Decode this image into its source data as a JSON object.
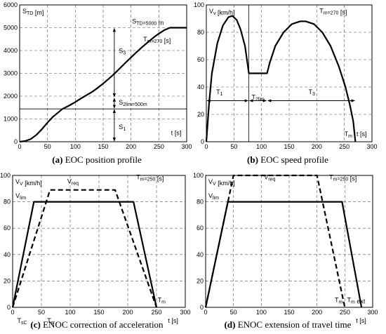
{
  "chart_data": [
    {
      "type": "line",
      "caption_prefix": "(a)",
      "caption_text": "EOC position profile",
      "ylabel": "S_TD [m]",
      "xlabel": "t [s]",
      "xlim": [
        0,
        300
      ],
      "ylim": [
        0,
        6000
      ],
      "xticks": [
        0,
        50,
        100,
        150,
        200,
        250,
        300
      ],
      "yticks": [
        0,
        1000,
        2000,
        3000,
        4000,
        5000,
        6000
      ],
      "grid": true,
      "series": [
        {
          "style": "solid",
          "x": [
            0,
            10,
            20,
            30,
            40,
            50,
            60,
            70,
            77,
            90,
            100,
            110,
            120,
            130,
            140,
            150,
            160,
            170,
            180,
            190,
            200,
            210,
            220,
            230,
            240,
            250,
            260,
            270,
            300
          ],
          "y": [
            0,
            30,
            120,
            300,
            550,
            840,
            1100,
            1300,
            1440,
            1600,
            1740,
            1900,
            2040,
            2180,
            2360,
            2550,
            2760,
            2980,
            3220,
            3460,
            3700,
            3930,
            4150,
            4360,
            4560,
            4740,
            4900,
            5000,
            5000
          ]
        }
      ],
      "annotations": [
        {
          "text": "S_TD=5000 m",
          "x": 202,
          "y": 5180
        },
        {
          "text": "T_m=270 [s]",
          "x": 222,
          "y": 4400
        },
        {
          "text": "S_3",
          "x": 178,
          "y": 3900
        },
        {
          "text": "S_2lim=500m",
          "x": 178,
          "y": 1630
        },
        {
          "text": "S_1",
          "x": 178,
          "y": 560
        }
      ],
      "arrow_x": 170,
      "arrow_levels": [
        0,
        1440,
        1940,
        5000
      ],
      "hline": 1440
    },
    {
      "type": "line",
      "caption_prefix": "(b)",
      "caption_text": "EOC speed profile",
      "ylabel": "V_v [km/h]",
      "xlabel": "t [s]",
      "xlim": [
        0,
        300
      ],
      "ylim": [
        0,
        100
      ],
      "xticks": [
        0,
        50,
        100,
        150,
        200,
        250,
        300
      ],
      "yticks": [
        0,
        20,
        40,
        60,
        80,
        100
      ],
      "grid": true,
      "series": [
        {
          "style": "solid",
          "x": [
            0,
            5,
            10,
            20,
            30,
            40,
            47,
            55,
            62,
            70,
            77,
            110,
            115,
            125,
            140,
            155,
            170,
            180,
            195,
            210,
            225,
            240,
            252,
            260,
            266,
            270
          ],
          "y": [
            0,
            28,
            50,
            72,
            85,
            91,
            92,
            89,
            82,
            70,
            50,
            50,
            58,
            70,
            80,
            86,
            88,
            88,
            86,
            80,
            70,
            55,
            40,
            27,
            15,
            0
          ]
        }
      ],
      "annotations": [
        {
          "text": "T_m=270 [s]",
          "x": 205,
          "y": 94
        },
        {
          "text": "T_1",
          "x": 18,
          "y": 35
        },
        {
          "text": "T_2lim",
          "x": 82,
          "y": 31
        },
        {
          "text": "T_3",
          "x": 185,
          "y": 35
        },
        {
          "text": "T_m",
          "x": 250,
          "y": 4
        },
        {
          "text": "t [s]",
          "x": 272,
          "y": 4
        }
      ],
      "arrow_y": 30,
      "arrow_levels": [
        0,
        77,
        110,
        270
      ],
      "vline": 77
    },
    {
      "type": "line",
      "caption_prefix": "(c)",
      "caption_text": "ENOC correction of acceleration",
      "ylabel": "V_V [km/h]",
      "xlabel": "t [s]",
      "xlim": [
        0,
        300
      ],
      "ylim": [
        0,
        100
      ],
      "xticks": [
        0,
        50,
        100,
        150,
        200,
        250,
        300
      ],
      "yticks": [
        0,
        20,
        40,
        60,
        80,
        100
      ],
      "ytick_labels": [
        "0",
        "20",
        "40",
        "60",
        "80",
        "100"
      ],
      "grid": true,
      "series": [
        {
          "style": "solid",
          "name_label": "V_lim",
          "x": [
            0,
            37,
            210,
            250
          ],
          "y": [
            0,
            80,
            80,
            0
          ]
        },
        {
          "style": "dashed",
          "name_label": "V_req",
          "x": [
            0,
            65,
            178,
            250
          ],
          "y": [
            0,
            89,
            89,
            0
          ]
        }
      ],
      "annotations": [
        {
          "text": "T_m=250 [s]",
          "x": 215,
          "y": 97
        },
        {
          "text": "V_req",
          "x": 95,
          "y": 94
        },
        {
          "text": "V_lim",
          "x": 5,
          "y": 83
        },
        {
          "text": "T_m",
          "x": 252,
          "y": 4
        },
        {
          "text": "T_sC",
          "x": 8,
          "y": -12
        },
        {
          "text": "T_s",
          "x": 60,
          "y": -12
        },
        {
          "text": "t [s]",
          "x": 270,
          "y": -12
        }
      ],
      "x_axis_offset_ticks": [
        0,
        50,
        100,
        150,
        200,
        250,
        300
      ]
    },
    {
      "type": "line",
      "caption_prefix": "(d)",
      "caption_text": "ENOC extension of travel time",
      "ylabel": "V_V [km/h]",
      "xlabel": "t [s]",
      "xlim": [
        0,
        300
      ],
      "ylim": [
        0,
        100
      ],
      "xticks": [
        0,
        50,
        100,
        150,
        200,
        250,
        300
      ],
      "yticks": [
        0,
        20,
        40,
        60,
        80,
        100
      ],
      "grid": true,
      "series": [
        {
          "style": "solid",
          "name_label": "V_lim",
          "x": [
            0,
            40,
            245,
            280
          ],
          "y": [
            0,
            80,
            80,
            0
          ]
        },
        {
          "style": "dashed",
          "name_label": "V_req",
          "x": [
            0,
            50,
            200,
            250
          ],
          "y": [
            0,
            100,
            100,
            0
          ]
        }
      ],
      "annotations": [
        {
          "text": "T_m=250 [s]",
          "x": 222,
          "y": 97
        },
        {
          "text": "V_req",
          "x": 105,
          "y": 97
        },
        {
          "text": "V_lim",
          "x": 5,
          "y": 83
        },
        {
          "text": "T_m",
          "x": 232,
          "y": 4
        },
        {
          "text": "T_m ext",
          "x": 254,
          "y": 4
        },
        {
          "text": "t [s]",
          "x": 270,
          "y": -12
        }
      ]
    }
  ]
}
